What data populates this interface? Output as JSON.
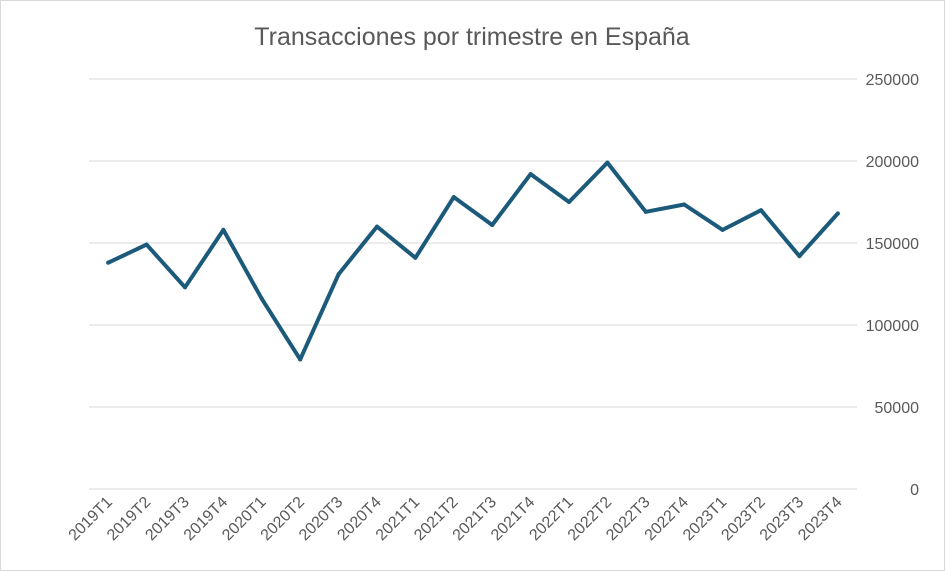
{
  "chart_data": {
    "type": "line",
    "title": "Transacciones por trimestre en España",
    "xlabel": "",
    "ylabel": "",
    "categories": [
      "2019T1",
      "2019T2",
      "2019T3",
      "2019T4",
      "2020T1",
      "2020T2",
      "2020T3",
      "2020T4",
      "2021T1",
      "2021T2",
      "2021T3",
      "2021T4",
      "2022T1",
      "2022T2",
      "2022T3",
      "2022T4",
      "2023T1",
      "2023T2",
      "2023T3",
      "2023T4"
    ],
    "series": [
      {
        "values": [
          138000,
          149000,
          123000,
          158000,
          116000,
          79000,
          131000,
          160000,
          141000,
          178000,
          161000,
          192000,
          175000,
          199000,
          169000,
          173500,
          158000,
          170000,
          142000,
          168000
        ]
      }
    ],
    "ylim": [
      0,
      250000
    ],
    "yticks": [
      "0",
      "50000",
      "100000",
      "150000",
      "200000",
      "250000"
    ],
    "grid": true,
    "y_axis_side": "right",
    "colors": {
      "line": "#1b5a7a",
      "grid": "#d9d9d9",
      "text": "#595959"
    }
  }
}
